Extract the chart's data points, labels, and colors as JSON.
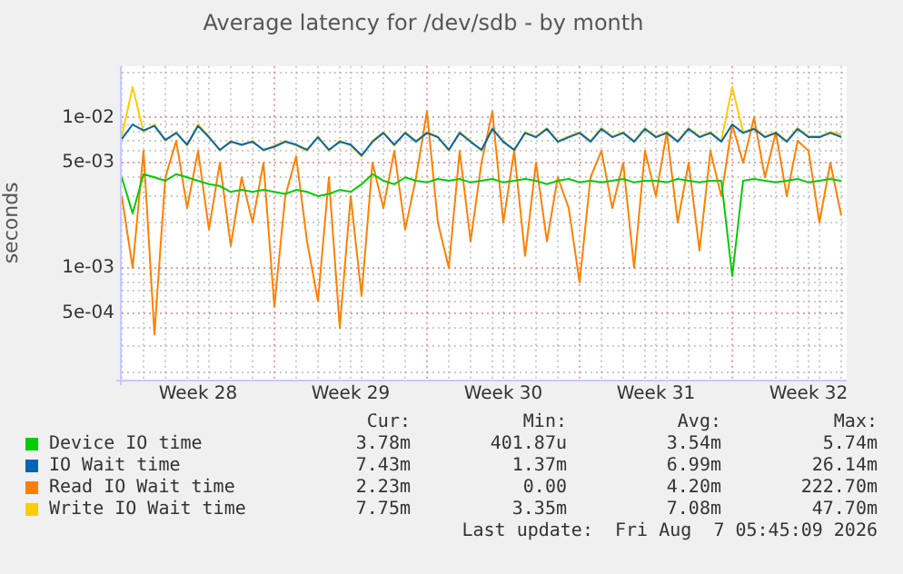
{
  "chart_data": {
    "type": "line",
    "title": "Average latency for /dev/sdb - by month",
    "ylabel": "seconds",
    "log": "y",
    "grid": true,
    "legend": "bottom",
    "marker": "none",
    "line_style": "solid",
    "xlim": [
      "2026-07-05T00:00",
      "2026-08-07T06:00"
    ],
    "ylim": [
      0.00018,
      0.022
    ],
    "yticks": [
      {
        "value": 0.0002,
        "label": null
      },
      {
        "value": 0.0003,
        "label": null
      },
      {
        "value": 0.0004,
        "label": null
      },
      {
        "value": 0.0005,
        "label": "5e-04"
      },
      {
        "value": 0.0006,
        "label": null
      },
      {
        "value": 0.0007,
        "label": null
      },
      {
        "value": 0.0008,
        "label": null
      },
      {
        "value": 0.0009,
        "label": null
      },
      {
        "value": 0.001,
        "label": "1e-03"
      },
      {
        "value": 0.002,
        "label": null
      },
      {
        "value": 0.003,
        "label": null
      },
      {
        "value": 0.004,
        "label": null
      },
      {
        "value": 0.005,
        "label": "5e-03"
      },
      {
        "value": 0.006,
        "label": null
      },
      {
        "value": 0.007,
        "label": null
      },
      {
        "value": 0.008,
        "label": null
      },
      {
        "value": 0.009,
        "label": null
      },
      {
        "value": 0.01,
        "label": "1e-02"
      },
      {
        "value": 0.02,
        "label": null
      }
    ],
    "xticks": [
      {
        "value": "2026-07-05",
        "label": null
      },
      {
        "value": "2026-07-06",
        "label": null
      },
      {
        "value": "2026-07-07",
        "label": null
      },
      {
        "value": "2026-07-08",
        "label": null
      },
      {
        "value": "2026-07-08T12:00",
        "label": "Week 28"
      },
      {
        "value": "2026-07-09",
        "label": null
      },
      {
        "value": "2026-07-10",
        "label": null
      },
      {
        "value": "2026-07-11",
        "label": null
      },
      {
        "value": "2026-07-12",
        "label": null
      },
      {
        "value": "2026-07-13",
        "label": null
      },
      {
        "value": "2026-07-14",
        "label": null
      },
      {
        "value": "2026-07-15",
        "label": null
      },
      {
        "value": "2026-07-15T12:00",
        "label": "Week 29"
      },
      {
        "value": "2026-07-16",
        "label": null
      },
      {
        "value": "2026-07-17",
        "label": null
      },
      {
        "value": "2026-07-18",
        "label": null
      },
      {
        "value": "2026-07-19",
        "label": null
      },
      {
        "value": "2026-07-20",
        "label": null
      },
      {
        "value": "2026-07-21",
        "label": null
      },
      {
        "value": "2026-07-22",
        "label": null
      },
      {
        "value": "2026-07-22T12:00",
        "label": "Week 30"
      },
      {
        "value": "2026-07-23",
        "label": null
      },
      {
        "value": "2026-07-24",
        "label": null
      },
      {
        "value": "2026-07-25",
        "label": null
      },
      {
        "value": "2026-07-26",
        "label": null
      },
      {
        "value": "2026-07-27",
        "label": null
      },
      {
        "value": "2026-07-28",
        "label": null
      },
      {
        "value": "2026-07-29",
        "label": null
      },
      {
        "value": "2026-07-29T12:00",
        "label": "Week 31"
      },
      {
        "value": "2026-07-30",
        "label": null
      },
      {
        "value": "2026-07-31",
        "label": null
      },
      {
        "value": "2026-08-01",
        "label": null
      },
      {
        "value": "2026-08-02",
        "label": null
      },
      {
        "value": "2026-08-03",
        "label": null
      },
      {
        "value": "2026-08-04",
        "label": null
      },
      {
        "value": "2026-08-05",
        "label": null
      },
      {
        "value": "2026-08-05T12:00",
        "label": "Week 32"
      },
      {
        "value": "2026-08-06",
        "label": null
      },
      {
        "value": "2026-08-07",
        "label": null
      }
    ],
    "x": [
      "2026-07-05T00:00",
      "2026-07-05T12:00",
      "2026-07-06T00:00",
      "2026-07-06T12:00",
      "2026-07-07T00:00",
      "2026-07-07T12:00",
      "2026-07-08T00:00",
      "2026-07-08T12:00",
      "2026-07-09T00:00",
      "2026-07-09T12:00",
      "2026-07-10T00:00",
      "2026-07-10T12:00",
      "2026-07-11T00:00",
      "2026-07-11T12:00",
      "2026-07-12T00:00",
      "2026-07-12T12:00",
      "2026-07-13T00:00",
      "2026-07-13T12:00",
      "2026-07-14T00:00",
      "2026-07-14T12:00",
      "2026-07-15T00:00",
      "2026-07-15T12:00",
      "2026-07-16T00:00",
      "2026-07-16T12:00",
      "2026-07-17T00:00",
      "2026-07-17T12:00",
      "2026-07-18T00:00",
      "2026-07-18T12:00",
      "2026-07-19T00:00",
      "2026-07-19T12:00",
      "2026-07-20T00:00",
      "2026-07-20T12:00",
      "2026-07-21T00:00",
      "2026-07-21T12:00",
      "2026-07-22T00:00",
      "2026-07-22T12:00",
      "2026-07-23T00:00",
      "2026-07-23T12:00",
      "2026-07-24T00:00",
      "2026-07-24T12:00",
      "2026-07-25T00:00",
      "2026-07-25T12:00",
      "2026-07-26T00:00",
      "2026-07-26T12:00",
      "2026-07-27T00:00",
      "2026-07-27T12:00",
      "2026-07-28T00:00",
      "2026-07-28T12:00",
      "2026-07-29T00:00",
      "2026-07-29T12:00",
      "2026-07-30T00:00",
      "2026-07-30T12:00",
      "2026-07-31T00:00",
      "2026-07-31T12:00",
      "2026-08-01T00:00",
      "2026-08-01T12:00",
      "2026-08-02T00:00",
      "2026-08-02T12:00",
      "2026-08-03T00:00",
      "2026-08-03T12:00",
      "2026-08-04T00:00",
      "2026-08-04T12:00",
      "2026-08-05T00:00",
      "2026-08-05T12:00",
      "2026-08-06T00:00",
      "2026-08-06T12:00",
      "2026-08-07T00:00"
    ],
    "series": [
      {
        "name": "Device IO time",
        "color": "#00cc00",
        "values": [
          0.004,
          0.0023,
          0.0042,
          0.004,
          0.0038,
          0.0042,
          0.004,
          0.0038,
          0.0036,
          0.0035,
          0.0032,
          0.0033,
          0.0032,
          0.0033,
          0.0032,
          0.0031,
          0.0033,
          0.0032,
          0.003,
          0.0031,
          0.0033,
          0.0032,
          0.0036,
          0.0042,
          0.0038,
          0.0036,
          0.004,
          0.0038,
          0.0037,
          0.0039,
          0.0038,
          0.0039,
          0.0037,
          0.0038,
          0.0039,
          0.0037,
          0.0038,
          0.0039,
          0.0038,
          0.0036,
          0.0038,
          0.0039,
          0.0037,
          0.0038,
          0.0037,
          0.0038,
          0.0039,
          0.0037,
          0.0038,
          0.0038,
          0.0037,
          0.0039,
          0.0038,
          0.0037,
          0.0038,
          0.0038,
          0.00088,
          0.0038,
          0.0039,
          0.0038,
          0.0037,
          0.0038,
          0.0039,
          0.0037,
          0.0038,
          0.0039,
          0.00378
        ]
      },
      {
        "name": "IO Wait time",
        "color": "#0066b3",
        "values": [
          0.0072,
          0.009,
          0.0082,
          0.0088,
          0.0071,
          0.0079,
          0.0066,
          0.0088,
          0.0074,
          0.0061,
          0.0069,
          0.0066,
          0.0069,
          0.0061,
          0.0064,
          0.0069,
          0.0066,
          0.0061,
          0.0074,
          0.0061,
          0.0069,
          0.0066,
          0.0056,
          0.0069,
          0.0079,
          0.0066,
          0.0079,
          0.0069,
          0.0079,
          0.0074,
          0.0061,
          0.0079,
          0.0069,
          0.0061,
          0.0084,
          0.0069,
          0.0061,
          0.0079,
          0.0074,
          0.0084,
          0.0069,
          0.0074,
          0.0079,
          0.0069,
          0.0084,
          0.0074,
          0.0079,
          0.0069,
          0.0084,
          0.0074,
          0.0079,
          0.0069,
          0.0084,
          0.0074,
          0.0079,
          0.0069,
          0.009,
          0.0079,
          0.0084,
          0.0074,
          0.0079,
          0.0069,
          0.0084,
          0.0074,
          0.0074,
          0.0079,
          0.00743
        ]
      },
      {
        "name": "Read IO Wait time",
        "color": "#ff8000",
        "values": [
          0.003,
          0.001,
          0.006,
          0.00036,
          0.004,
          0.007,
          0.0025,
          0.006,
          0.0018,
          0.005,
          0.0014,
          0.004,
          0.002,
          0.005,
          0.00055,
          0.003,
          0.0055,
          0.0015,
          0.0006,
          0.004,
          0.0004,
          0.003,
          0.00065,
          0.005,
          0.0025,
          0.006,
          0.0018,
          0.004,
          0.011,
          0.002,
          0.001,
          0.006,
          0.0015,
          0.005,
          0.011,
          0.002,
          0.006,
          0.0012,
          0.005,
          0.0015,
          0.004,
          0.0025,
          0.0008,
          0.004,
          0.006,
          0.0025,
          0.005,
          0.001,
          0.006,
          0.003,
          0.008,
          0.002,
          0.005,
          0.0013,
          0.006,
          0.003,
          0.009,
          0.005,
          0.01,
          0.004,
          0.008,
          0.003,
          0.007,
          0.006,
          0.002,
          0.005,
          0.00223
        ]
      },
      {
        "name": "Write IO Wait time",
        "color": "#ffcc00",
        "values": [
          0.0075,
          0.016,
          0.008,
          0.009,
          0.007,
          0.008,
          0.0065,
          0.009,
          0.0075,
          0.006,
          0.007,
          0.0065,
          0.007,
          0.006,
          0.0065,
          0.007,
          0.0065,
          0.006,
          0.0075,
          0.006,
          0.007,
          0.0065,
          0.0055,
          0.007,
          0.008,
          0.0065,
          0.008,
          0.007,
          0.008,
          0.0075,
          0.006,
          0.008,
          0.007,
          0.006,
          0.0085,
          0.007,
          0.006,
          0.008,
          0.0075,
          0.0085,
          0.007,
          0.0075,
          0.008,
          0.007,
          0.0085,
          0.0075,
          0.008,
          0.007,
          0.0085,
          0.0075,
          0.008,
          0.007,
          0.0085,
          0.0075,
          0.008,
          0.007,
          0.016,
          0.008,
          0.0085,
          0.0075,
          0.008,
          0.007,
          0.0085,
          0.0075,
          0.0075,
          0.008,
          0.00775
        ]
      }
    ],
    "annotations": [
      "Cur:",
      "Min:",
      "Avg:",
      "Max:",
      "3.78m",
      "401.87u",
      "3.54m",
      "5.74m",
      "7.43m",
      "1.37m",
      "6.99m",
      "26.14m",
      "2.23m",
      "0.00",
      "4.20m",
      "222.70m",
      "7.75m",
      "3.35m",
      "7.08m",
      "47.70m",
      "Last update:  Fri Aug  7 05:45:09 2026"
    ]
  }
}
